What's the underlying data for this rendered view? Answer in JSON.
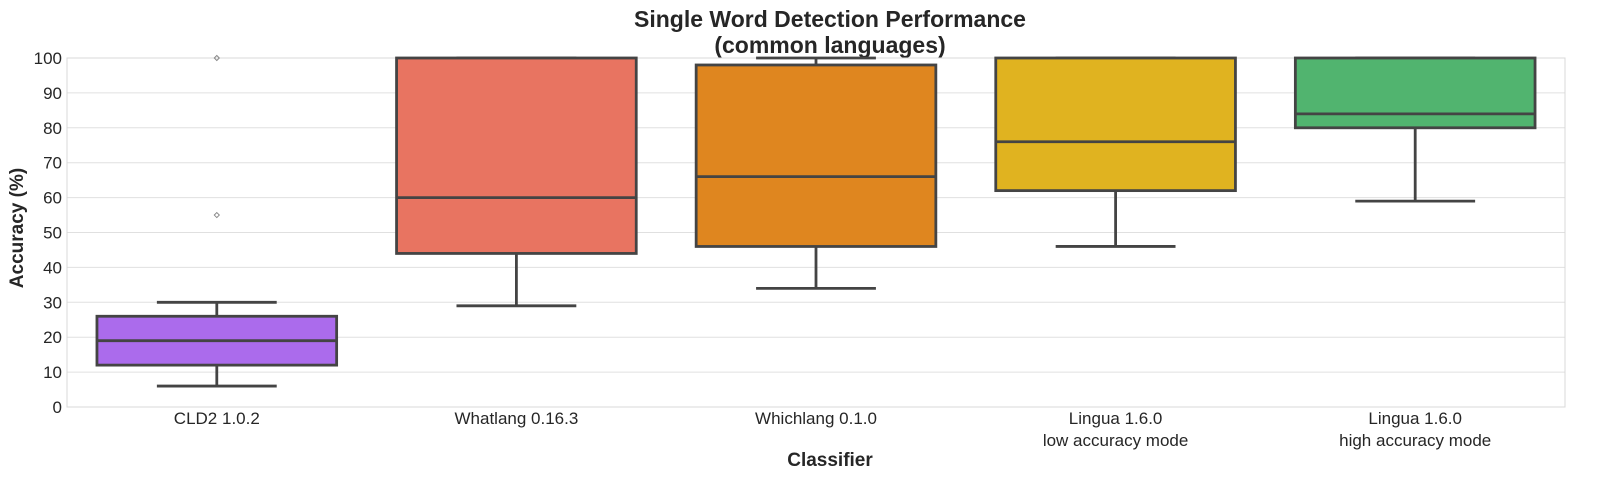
{
  "chart_data": {
    "type": "box",
    "title": [
      "Single Word Detection Performance",
      "(common languages)"
    ],
    "xlabel": "Classifier",
    "ylabel": "Accuracy (%)",
    "ylim": [
      0,
      100
    ],
    "yticks": [
      0,
      10,
      20,
      30,
      40,
      50,
      60,
      70,
      80,
      90,
      100
    ],
    "grid": true,
    "categories": [
      [
        "CLD2 1.0.2"
      ],
      [
        "Whatlang 0.16.3"
      ],
      [
        "Whichlang 0.1.0"
      ],
      [
        "Lingua 1.6.0",
        "low accuracy mode"
      ],
      [
        "Lingua 1.6.0",
        "high accuracy mode"
      ]
    ],
    "boxes": [
      {
        "whisker_low": 6,
        "q1": 12,
        "median": 19,
        "q3": 26,
        "whisker_high": 30,
        "outliers": [
          55,
          100
        ],
        "color": "#ab6bec"
      },
      {
        "whisker_low": 29,
        "q1": 44,
        "median": 60,
        "q3": 100,
        "whisker_high": 100,
        "outliers": [],
        "color": "#e87461"
      },
      {
        "whisker_low": 34,
        "q1": 46,
        "median": 66,
        "q3": 98,
        "whisker_high": 100,
        "outliers": [],
        "color": "#df861f"
      },
      {
        "whisker_low": 46,
        "q1": 62,
        "median": 76,
        "q3": 100,
        "whisker_high": 100,
        "outliers": [],
        "color": "#e0b320"
      },
      {
        "whisker_low": 59,
        "q1": 80,
        "median": 84,
        "q3": 100,
        "whisker_high": 100,
        "outliers": [],
        "color": "#51b46f"
      }
    ],
    "line_color": "#444444",
    "grid_color": "#e0e0e0",
    "frame_color": "#d8d8d8"
  }
}
